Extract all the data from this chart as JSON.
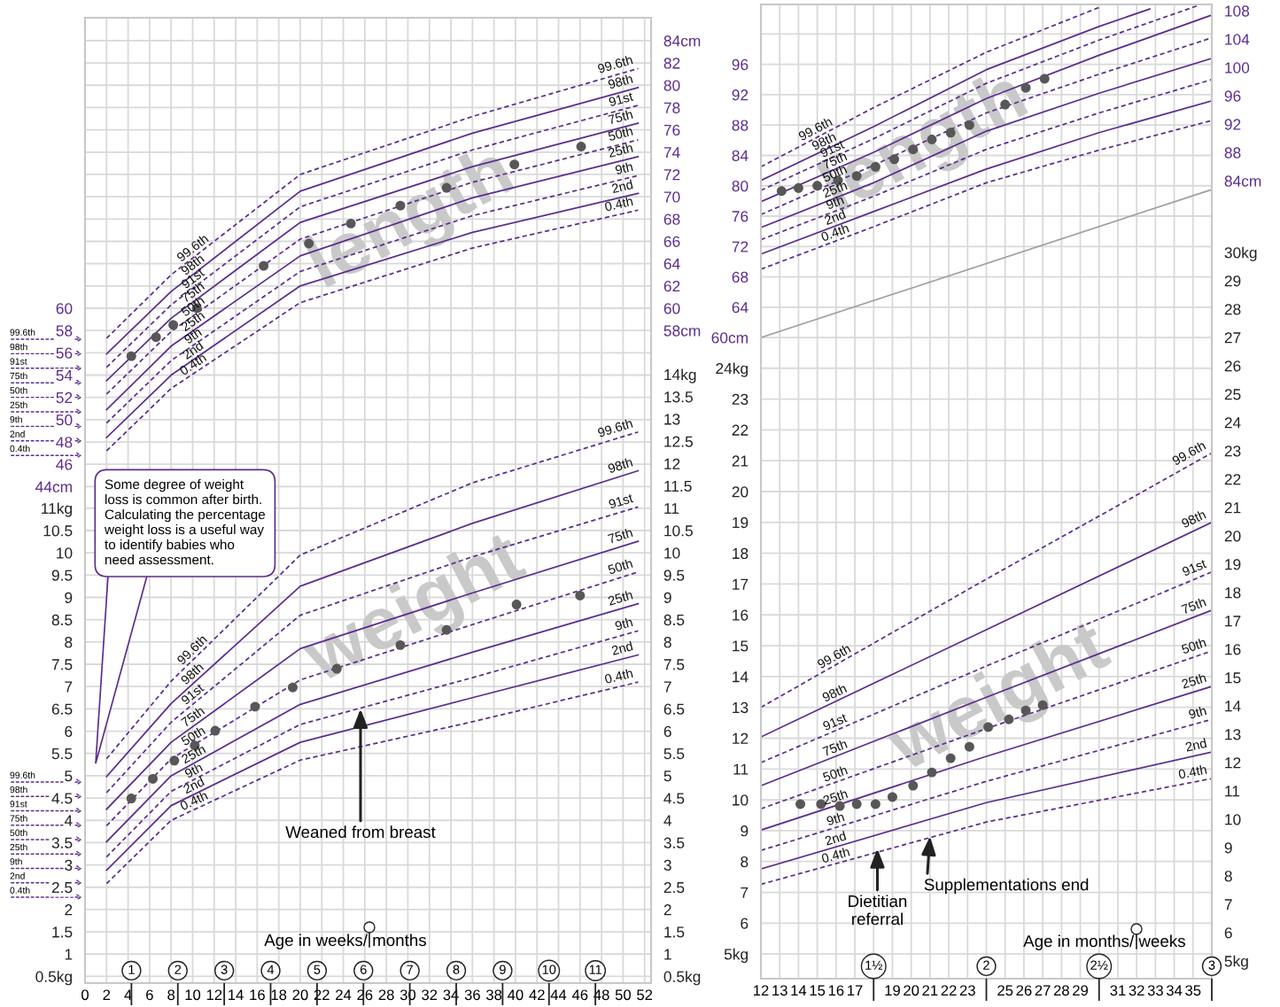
{
  "chart_data": [
    {
      "type": "line",
      "xlim": [
        0,
        52.6
      ],
      "ylim": [
        -0.54,
        86.06
      ],
      "y2lim": [
        -0.54,
        86.06
      ],
      "tick_labels": "y",
      "grid": true,
      "xticks": [
        0,
        2,
        4,
        6,
        8,
        10,
        12,
        14,
        16,
        18,
        20,
        22,
        24,
        26,
        28,
        30,
        32,
        34,
        36,
        38,
        40,
        42,
        44,
        46,
        48,
        50,
        52
      ],
      "yticks": [
        {
          "value": 44,
          "label": "44cm"
        },
        46,
        48,
        50,
        52,
        54,
        56,
        58,
        60,
        {
          "value": 62,
          "label": null
        },
        {
          "value": 64,
          "label": null
        },
        {
          "value": 66,
          "label": null
        },
        {
          "value": 68,
          "label": null
        },
        {
          "value": 70,
          "label": null
        },
        {
          "value": 72,
          "label": null
        },
        {
          "value": 74,
          "label": null
        },
        {
          "value": 76,
          "label": null
        },
        {
          "value": 78,
          "label": null
        },
        {
          "value": 80,
          "label": null
        },
        {
          "value": 82,
          "label": null
        },
        {
          "value": 84,
          "label": null
        }
      ],
      "y2ticks": [
        {
          "value": 58,
          "label": "58cm"
        },
        60,
        62,
        64,
        66,
        68,
        70,
        72,
        74,
        76,
        78,
        80,
        82,
        {
          "value": 84,
          "label": "84cm"
        }
      ],
      "series": [
        {
          "name": "99.6th",
          "color": "#5b2d8e",
          "line_style": "dashed",
          "x": [
            2,
            8,
            20,
            36,
            51.4
          ],
          "values": [
            57.3,
            63.0,
            72.0,
            77.2,
            81.5
          ]
        },
        {
          "name": "98th",
          "color": "#5b2d8e",
          "line_style": "solid",
          "x": [
            2,
            8,
            20,
            36,
            51.4
          ],
          "values": [
            55.9,
            61.5,
            70.5,
            75.7,
            79.8
          ]
        },
        {
          "name": "91st",
          "color": "#5b2d8e",
          "line_style": "dashed",
          "x": [
            2,
            8,
            20,
            36,
            51.4
          ],
          "values": [
            54.7,
            60.3,
            69.1,
            74.2,
            78.2
          ]
        },
        {
          "name": "75th",
          "color": "#5b2d8e",
          "line_style": "solid",
          "x": [
            2,
            8,
            20,
            36,
            51.4
          ],
          "values": [
            53.5,
            59.1,
            67.7,
            72.7,
            76.6
          ]
        },
        {
          "name": "50th",
          "color": "#5b2d8e",
          "line_style": "dashed",
          "x": [
            2,
            8,
            20,
            36,
            51.4
          ],
          "values": [
            52.3,
            57.9,
            66.2,
            71.3,
            75.1
          ]
        },
        {
          "name": "25th",
          "color": "#5b2d8e",
          "line_style": "solid",
          "x": [
            2,
            8,
            20,
            36,
            51.4
          ],
          "values": [
            50.9,
            56.6,
            64.7,
            69.9,
            73.6
          ]
        },
        {
          "name": "9th",
          "color": "#5b2d8e",
          "line_style": "dashed",
          "x": [
            2,
            8,
            20,
            36,
            51.4
          ],
          "values": [
            49.7,
            55.3,
            63.3,
            68.3,
            71.9
          ]
        },
        {
          "name": "2nd",
          "color": "#5b2d8e",
          "line_style": "solid",
          "x": [
            2,
            8,
            20,
            36,
            51.4
          ],
          "values": [
            48.4,
            54.0,
            62.0,
            66.8,
            70.3
          ]
        },
        {
          "name": "0.4th",
          "color": "#5b2d8e",
          "line_style": "dashed",
          "x": [
            2,
            8,
            20,
            36,
            51.4
          ],
          "values": [
            47.2,
            52.8,
            60.5,
            65.4,
            68.8
          ]
        },
        {
          "type": "scatter",
          "color": "#575757",
          "marker": "circle",
          "x": [
            4.3,
            6.6,
            8.2,
            10.4,
            16.6,
            20.8,
            24.7,
            29.3,
            33.6,
            39.9,
            46.1
          ],
          "values": [
            55.7,
            57.4,
            58.5,
            60.0,
            63.8,
            65.8,
            67.6,
            69.2,
            70.8,
            72.9,
            74.5
          ]
        }
      ],
      "annotations": [
        "length",
        "99.6th",
        "98th",
        "91st",
        "75th",
        "50th",
        "25th",
        "9th",
        "2nd",
        "0.4th"
      ]
    },
    {
      "type": "line",
      "xlim": [
        0,
        52.6
      ],
      "ylim": [
        0.35,
        22.0
      ],
      "y2lim": [
        0.35,
        22.0
      ],
      "grid": true,
      "xlabel": "Age in weeks/ months",
      "xticks": [
        0,
        2,
        4,
        6,
        8,
        10,
        12,
        14,
        16,
        18,
        20,
        22,
        24,
        26,
        28,
        30,
        32,
        34,
        36,
        38,
        40,
        42,
        44,
        46,
        48,
        50,
        52
      ],
      "x2lim": [
        0,
        12.2
      ],
      "x2ticks": [
        1,
        2,
        3,
        4,
        5,
        6,
        7,
        8,
        9,
        10,
        11
      ],
      "yticks": [
        {
          "value": 0.5,
          "label": "0.5kg"
        },
        1,
        1.5,
        2,
        2.5,
        3,
        3.5,
        4,
        4.5,
        5,
        5.5,
        6,
        6.5,
        7,
        7.5,
        8,
        8.5,
        9,
        9.5,
        10,
        10.5,
        {
          "value": 11,
          "label": "11kg"
        }
      ],
      "y2ticks": [
        {
          "value": 0.5,
          "label": "0.5kg"
        },
        1,
        1.5,
        2,
        2.5,
        3,
        3.5,
        4,
        4.5,
        5,
        5.5,
        6,
        6.5,
        7,
        7.5,
        8,
        8.5,
        9,
        9.5,
        10,
        10.5,
        11,
        11.5,
        12,
        12.5,
        13,
        13.5,
        {
          "value": 14,
          "label": "14kg"
        }
      ],
      "series": [
        {
          "name": "99.6th",
          "color": "#5b2d8e",
          "line_style": "dashed",
          "x": [
            2,
            8,
            20,
            36,
            51.4
          ],
          "values": [
            5.38,
            7.12,
            9.95,
            11.57,
            12.71
          ]
        },
        {
          "name": "98th",
          "color": "#5b2d8e",
          "line_style": "solid",
          "x": [
            2,
            8,
            20,
            36,
            51.4
          ],
          "values": [
            4.98,
            6.62,
            9.25,
            10.66,
            11.84
          ]
        },
        {
          "name": "91st",
          "color": "#5b2d8e",
          "line_style": "dashed",
          "x": [
            2,
            8,
            20,
            36,
            51.4
          ],
          "values": [
            4.62,
            6.2,
            8.6,
            9.91,
            11.03
          ]
        },
        {
          "name": "75th",
          "color": "#5b2d8e",
          "line_style": "solid",
          "x": [
            2,
            8,
            20,
            36,
            51.4
          ],
          "values": [
            4.25,
            5.75,
            7.85,
            9.1,
            10.26
          ]
        },
        {
          "name": "50th",
          "color": "#5b2d8e",
          "line_style": "dashed",
          "x": [
            2,
            8,
            20,
            36,
            51.4
          ],
          "values": [
            3.88,
            5.38,
            7.15,
            8.39,
            9.57
          ]
        },
        {
          "name": "25th",
          "color": "#5b2d8e",
          "line_style": "solid",
          "x": [
            2,
            8,
            20,
            36,
            51.4
          ],
          "values": [
            3.52,
            5.0,
            6.6,
            7.77,
            8.86
          ]
        },
        {
          "name": "9th",
          "color": "#5b2d8e",
          "line_style": "dashed",
          "x": [
            2,
            8,
            20,
            36,
            51.4
          ],
          "values": [
            3.18,
            4.65,
            6.15,
            7.2,
            8.25
          ]
        },
        {
          "name": "2nd",
          "color": "#5b2d8e",
          "line_style": "solid",
          "x": [
            2,
            8,
            20,
            36,
            51.4
          ],
          "values": [
            2.88,
            4.33,
            5.75,
            6.75,
            7.71
          ]
        },
        {
          "name": "0.4th",
          "color": "#5b2d8e",
          "line_style": "dashed",
          "x": [
            2,
            8,
            20,
            36,
            51.4
          ],
          "values": [
            2.58,
            4.0,
            5.35,
            6.21,
            7.1
          ]
        },
        {
          "type": "scatter",
          "color": "#575757",
          "marker": "circle",
          "x": [
            4.3,
            6.3,
            8.3,
            10.2,
            12.1,
            15.8,
            19.3,
            23.4,
            29.3,
            33.6,
            40.1,
            46.0
          ],
          "values": [
            4.49,
            4.93,
            5.34,
            5.68,
            6.01,
            6.55,
            6.98,
            7.4,
            7.93,
            8.27,
            8.84,
            9.04
          ]
        }
      ],
      "annotations": [
        "weight",
        "Some degree of weight\nloss is common after birth.\nCalculating the percentage\nweight loss is a useful way\nto identify babies who\nneed assessment.",
        {
          "text": "Weaned from breast",
          "x": 25.6,
          "y": 6.5
        },
        "99.6th",
        "98th",
        "91st",
        "75th",
        "50th",
        "25th",
        "9th",
        "2nd",
        "0.4th"
      ]
    },
    {
      "type": "line",
      "xlim": [
        12,
        36
      ],
      "ylim": [
        -24.5,
        103.9
      ],
      "y2lim": [
        -28.6,
        108.9
      ],
      "tick_labels": "y",
      "grid": true,
      "xticks": [
        12,
        13,
        14,
        15,
        16,
        17,
        {
          "value": 18,
          "label": null
        },
        19,
        20,
        21,
        22,
        23,
        {
          "value": 24,
          "label": null
        },
        25,
        26,
        27,
        28,
        29,
        {
          "value": 30,
          "label": null
        },
        31,
        32,
        33,
        34,
        35
      ],
      "yticks": [
        {
          "value": 60,
          "label": "60cm"
        },
        64,
        68,
        72,
        76,
        80,
        84,
        88,
        92,
        96,
        {
          "value": 100,
          "label": null
        }
      ],
      "y2ticks": [
        {
          "value": 84,
          "label": "84cm"
        },
        88,
        92,
        96,
        100,
        104,
        108
      ],
      "series": [
        {
          "name": "99.6th",
          "color": "#5b2d8e",
          "line_style": "dashed",
          "x": [
            12,
            18,
            24,
            30.1
          ],
          "values": [
            82.5,
            90.3,
            97.6,
            103.6
          ]
        },
        {
          "name": "98th",
          "color": "#5b2d8e",
          "line_style": "solid",
          "x": [
            12,
            18,
            24,
            30,
            32.7
          ],
          "values": [
            80.7,
            87.8,
            95.3,
            101.0,
            103.3
          ]
        },
        {
          "name": "91st",
          "color": "#5b2d8e",
          "line_style": "dashed",
          "x": [
            12,
            18,
            24,
            30,
            35.2
          ],
          "values": [
            79.4,
            86.2,
            93.5,
            99.2,
            103.7
          ]
        },
        {
          "name": "75th",
          "color": "#5b2d8e",
          "line_style": "solid",
          "x": [
            12,
            18,
            24,
            30,
            36
          ],
          "values": [
            77.9,
            84.4,
            91.5,
            97.2,
            102.5
          ]
        },
        {
          "name": "50th",
          "color": "#5b2d8e",
          "line_style": "dashed",
          "x": [
            12,
            18,
            24,
            30,
            36
          ],
          "values": [
            76.2,
            82.7,
            89.6,
            94.7,
            99.5
          ]
        },
        {
          "name": "25th",
          "color": "#5b2d8e",
          "line_style": "solid",
          "x": [
            12,
            18,
            24,
            30,
            36
          ],
          "values": [
            74.5,
            80.4,
            87.2,
            92.2,
            96.8
          ]
        },
        {
          "name": "9th",
          "color": "#5b2d8e",
          "line_style": "dashed",
          "x": [
            12,
            18,
            24,
            30,
            36
          ],
          "values": [
            72.9,
            78.6,
            84.8,
            89.6,
            94.0
          ]
        },
        {
          "name": "2nd",
          "color": "#5b2d8e",
          "line_style": "solid",
          "x": [
            12,
            18,
            24,
            30,
            36
          ],
          "values": [
            71.0,
            76.6,
            82.2,
            87.0,
            91.2
          ]
        },
        {
          "name": "0.4th",
          "color": "#5b2d8e",
          "line_style": "dashed",
          "x": [
            12,
            18,
            24,
            30,
            36
          ],
          "values": [
            69.0,
            74.6,
            80.4,
            84.7,
            88.6
          ]
        },
        {
          "type": "line",
          "color": "#a0a0a0",
          "line_style": "solid",
          "x": [
            12,
            36
          ],
          "values": [
            60,
            79.5
          ]
        },
        {
          "type": "scatter",
          "color": "#575757",
          "marker": "circle",
          "x": [
            13.1,
            14.0,
            15.0,
            16.1,
            17.1,
            18.1,
            19.1,
            20.1,
            21.1,
            22.1,
            23.1,
            25.0,
            26.1,
            27.1
          ],
          "values": [
            79.3,
            79.7,
            80.0,
            80.7,
            81.3,
            82.5,
            83.5,
            84.8,
            86.1,
            87.0,
            88.0,
            90.7,
            92.9,
            94.1
          ]
        }
      ],
      "annotations": [
        "length"
      ]
    },
    {
      "type": "line",
      "xlim": [
        12,
        36
      ],
      "ylim": [
        4.2,
        35.8
      ],
      "y2lim": [
        4.375,
        38.75
      ],
      "grid": true,
      "xlabel": "Age in months/ weeks",
      "xticks": [
        12,
        13,
        14,
        15,
        16,
        17,
        {
          "value": 18,
          "label": null
        },
        19,
        20,
        21,
        22,
        23,
        {
          "value": 24,
          "label": null
        },
        25,
        26,
        27,
        28,
        29,
        {
          "value": 30,
          "label": null
        },
        31,
        32,
        33,
        34,
        35
      ],
      "x2lim": [
        1,
        3
      ],
      "x2ticks": [
        {
          "value": 1.5,
          "label": "1½"
        },
        2,
        {
          "value": 2.5,
          "label": "2½"
        },
        3
      ],
      "yticks": [
        {
          "value": 5,
          "label": "5kg"
        },
        6,
        7,
        8,
        9,
        10,
        11,
        12,
        13,
        14,
        15,
        16,
        17,
        18,
        19,
        20,
        21,
        22,
        23,
        {
          "value": 24,
          "label": "24kg"
        }
      ],
      "y2ticks": [
        {
          "value": 5,
          "label": "5kg"
        },
        6,
        7,
        8,
        9,
        10,
        11,
        12,
        13,
        14,
        15,
        16,
        17,
        18,
        19,
        20,
        21,
        22,
        23,
        24,
        25,
        26,
        27,
        28,
        29,
        {
          "value": 30,
          "label": "30kg"
        }
      ],
      "series": [
        {
          "name": "99.6th",
          "color": "#5b2d8e",
          "line_style": "dashed",
          "x": [
            12,
            24,
            36
          ],
          "values": [
            13.0,
            17.16,
            21.25
          ]
        },
        {
          "name": "98th",
          "color": "#5b2d8e",
          "line_style": "solid",
          "x": [
            12,
            24,
            36
          ],
          "values": [
            12.04,
            15.52,
            19.0
          ]
        },
        {
          "name": "91st",
          "color": "#5b2d8e",
          "line_style": "dashed",
          "x": [
            12,
            24,
            36
          ],
          "values": [
            11.21,
            14.34,
            17.39
          ]
        },
        {
          "name": "75th",
          "color": "#5b2d8e",
          "line_style": "solid",
          "x": [
            12,
            24,
            36
          ],
          "values": [
            10.46,
            13.33,
            16.15
          ]
        },
        {
          "name": "50th",
          "color": "#5b2d8e",
          "line_style": "dashed",
          "x": [
            12,
            24,
            36
          ],
          "values": [
            9.71,
            12.31,
            14.83
          ]
        },
        {
          "name": "25th",
          "color": "#5b2d8e",
          "line_style": "solid",
          "x": [
            12,
            24,
            36
          ],
          "values": [
            9.02,
            11.41,
            13.68
          ]
        },
        {
          "name": "9th",
          "color": "#5b2d8e",
          "line_style": "dashed",
          "x": [
            12,
            24,
            36
          ],
          "values": [
            8.36,
            10.6,
            12.61
          ]
        },
        {
          "name": "2nd",
          "color": "#5b2d8e",
          "line_style": "solid",
          "x": [
            12,
            24,
            36
          ],
          "values": [
            7.76,
            9.91,
            11.55
          ]
        },
        {
          "name": "0.4th",
          "color": "#5b2d8e",
          "line_style": "dashed",
          "x": [
            12,
            24,
            36
          ],
          "values": [
            7.26,
            9.28,
            10.69
          ]
        },
        {
          "type": "scatter",
          "color": "#575757",
          "marker": "circle",
          "x": [
            14.1,
            15.2,
            16.2,
            17.1,
            18.1,
            19.0,
            20.1,
            21.1,
            22.1,
            23.1,
            24.1,
            25.2,
            26.1,
            27.0
          ],
          "values": [
            9.86,
            9.86,
            9.8,
            9.86,
            9.86,
            10.09,
            10.46,
            10.89,
            11.35,
            11.72,
            12.36,
            12.61,
            12.9,
            13.07
          ]
        }
      ],
      "annotations": [
        "weight",
        {
          "text": "Dietitian\nreferral",
          "x": 18.2,
          "y": 8.42
        },
        {
          "text": "Supplementations end",
          "x": 21.0,
          "y": 8.82
        }
      ]
    }
  ]
}
